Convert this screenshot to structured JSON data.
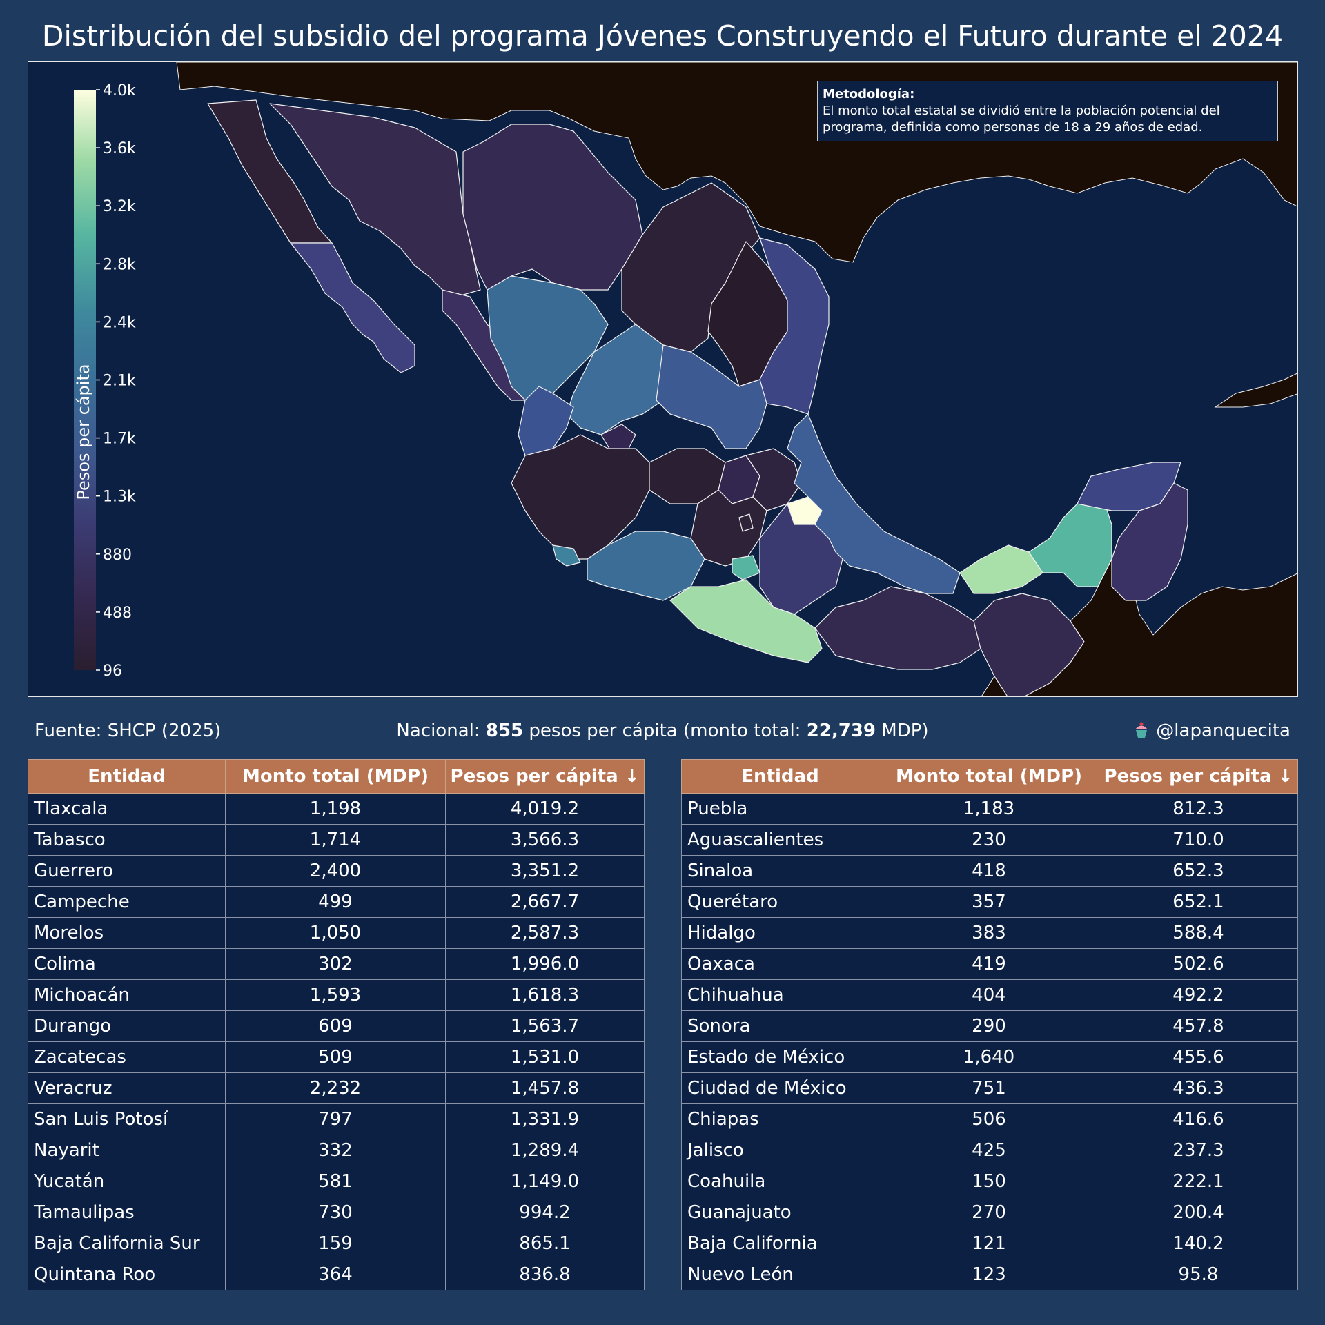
{
  "title": "Distribución del subsidio del programa Jóvenes Construyendo el Futuro durante el 2024",
  "methodology": {
    "heading": "Metodología:",
    "line1": "El monto total estatal se dividió entre la población potencial del",
    "line2": "programa, definida como personas de 18 a 29 años de edad."
  },
  "legend": {
    "label": "Pesos per cápita",
    "ticks": [
      "4.0k",
      "3.6k",
      "3.2k",
      "2.8k",
      "2.4k",
      "2.1k",
      "1.7k",
      "1.3k",
      "880",
      "488",
      "96"
    ],
    "min": 96,
    "max": 4019.2
  },
  "colors": {
    "background": "#1e3a5f",
    "ocean": "#0c2044",
    "foreign_land": "#1a0d05",
    "header": "#b87350"
  },
  "footer": {
    "source": "Fuente: SHCP (2025)",
    "national_prefix": "Nacional:",
    "national_value": "855",
    "national_mid": "pesos per cápita (monto total:",
    "national_total": "22,739",
    "national_suffix": "MDP)",
    "credit_icon": "cupcake-icon",
    "credit": "@lapanquecita"
  },
  "table": {
    "headers": [
      "Entidad",
      "Monto total (MDP)",
      "Pesos per cápita ↓"
    ],
    "left": [
      [
        "Tlaxcala",
        "1,198",
        "4,019.2"
      ],
      [
        "Tabasco",
        "1,714",
        "3,566.3"
      ],
      [
        "Guerrero",
        "2,400",
        "3,351.2"
      ],
      [
        "Campeche",
        "499",
        "2,667.7"
      ],
      [
        "Morelos",
        "1,050",
        "2,587.3"
      ],
      [
        "Colima",
        "302",
        "1,996.0"
      ],
      [
        "Michoacán",
        "1,593",
        "1,618.3"
      ],
      [
        "Durango",
        "609",
        "1,563.7"
      ],
      [
        "Zacatecas",
        "509",
        "1,531.0"
      ],
      [
        "Veracruz",
        "2,232",
        "1,457.8"
      ],
      [
        "San Luis Potosí",
        "797",
        "1,331.9"
      ],
      [
        "Nayarit",
        "332",
        "1,289.4"
      ],
      [
        "Yucatán",
        "581",
        "1,149.0"
      ],
      [
        "Tamaulipas",
        "730",
        "994.2"
      ],
      [
        "Baja California Sur",
        "159",
        "865.1"
      ],
      [
        "Quintana Roo",
        "364",
        "836.8"
      ]
    ],
    "right": [
      [
        "Puebla",
        "1,183",
        "812.3"
      ],
      [
        "Aguascalientes",
        "230",
        "710.0"
      ],
      [
        "Sinaloa",
        "418",
        "652.3"
      ],
      [
        "Querétaro",
        "357",
        "652.1"
      ],
      [
        "Hidalgo",
        "383",
        "588.4"
      ],
      [
        "Oaxaca",
        "419",
        "502.6"
      ],
      [
        "Chihuahua",
        "404",
        "492.2"
      ],
      [
        "Sonora",
        "290",
        "457.8"
      ],
      [
        "Estado de México",
        "1,640",
        "455.6"
      ],
      [
        "Ciudad de México",
        "751",
        "436.3"
      ],
      [
        "Chiapas",
        "506",
        "416.6"
      ],
      [
        "Jalisco",
        "425",
        "237.3"
      ],
      [
        "Coahuila",
        "150",
        "222.1"
      ],
      [
        "Guanajuato",
        "270",
        "200.4"
      ],
      [
        "Baja California",
        "121",
        "140.2"
      ],
      [
        "Nuevo León",
        "123",
        "95.8"
      ]
    ]
  }
}
